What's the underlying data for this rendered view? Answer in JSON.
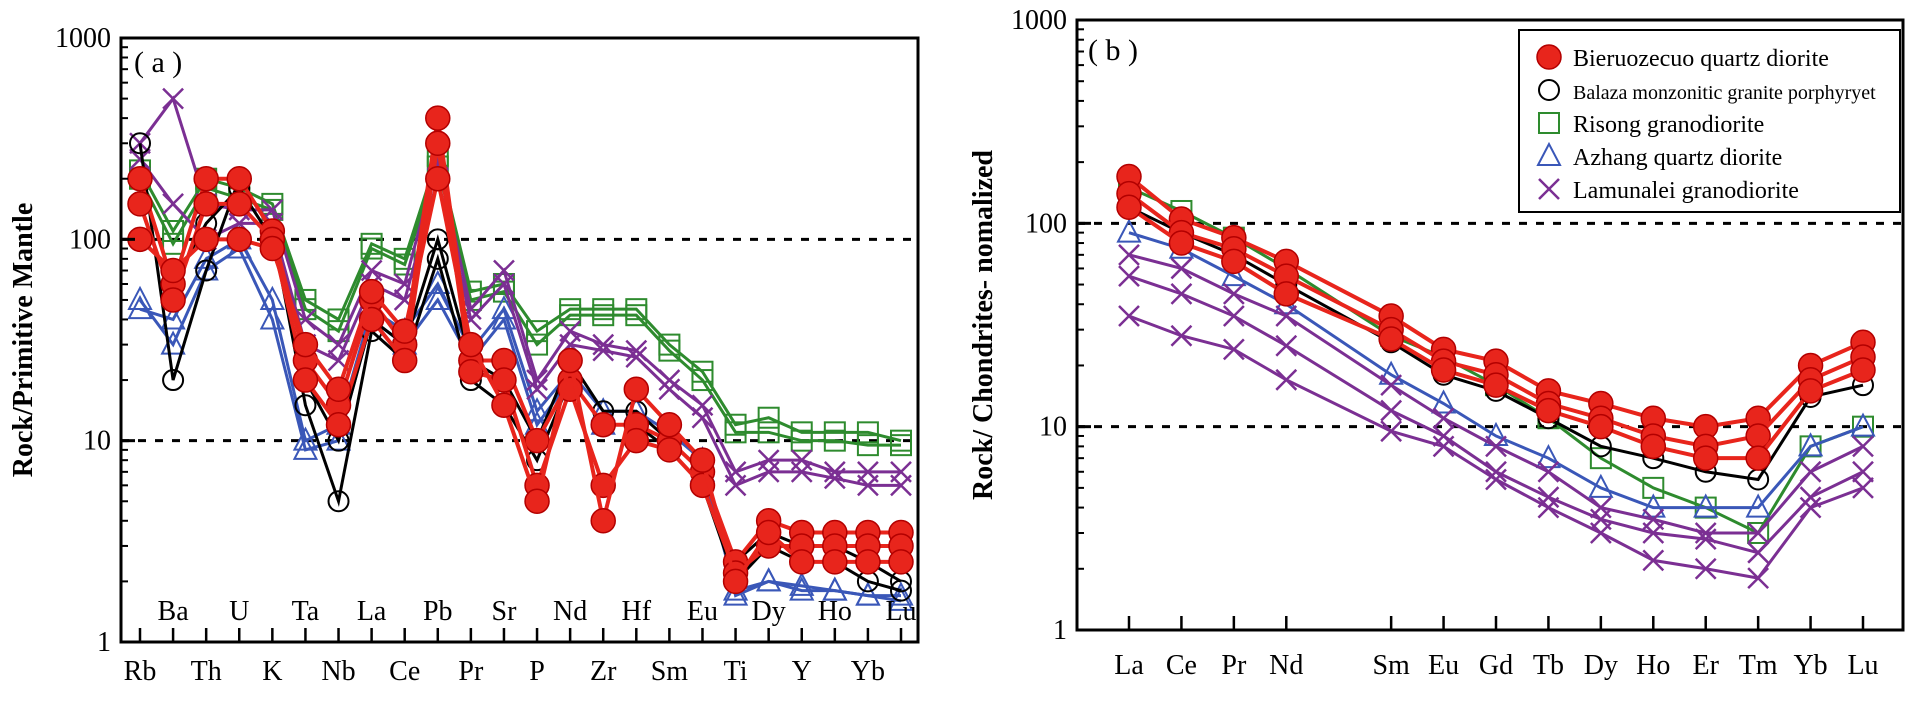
{
  "colors": {
    "bieruozecuo": "#e8251c",
    "balaza": "#000000",
    "risong": "#2e8b2e",
    "azhang": "#3a57b8",
    "lamunalei": "#7b2f93"
  },
  "chart_data": [
    {
      "type": "line",
      "panel_label": "( a )",
      "title": "",
      "ylabel": "Rock/Primitive Mantle",
      "yscale": "log",
      "ylim": [
        1,
        1000
      ],
      "yticks": [
        "1",
        "10",
        "100",
        "1000"
      ],
      "ref_lines": [
        10,
        100
      ],
      "categories": [
        "Rb",
        "Ba",
        "Th",
        "U",
        "K",
        "Ta",
        "Nb",
        "La",
        "Ce",
        "Pb",
        "Pr",
        "Sr",
        "P",
        "Nd",
        "Zr",
        "Hf",
        "Sm",
        "Eu",
        "Ti",
        "Dy",
        "Y",
        "Ho",
        "Yb",
        "Lu"
      ],
      "series": [
        {
          "name": "Risong granodiorite",
          "marker": "square",
          "color_key": "risong",
          "values": [
            220,
            110,
            200,
            180,
            150,
            50,
            40,
            95,
            80,
            260,
            55,
            60,
            35,
            45,
            45,
            45,
            30,
            22,
            12,
            13,
            11,
            11,
            11,
            10
          ]
        },
        {
          "name": "Risong granodiorite",
          "marker": "square",
          "color_key": "risong",
          "values": [
            200,
            95,
            180,
            160,
            140,
            45,
            35,
            90,
            75,
            230,
            50,
            55,
            30,
            42,
            42,
            42,
            28,
            20,
            11,
            11,
            10,
            10,
            9.5,
            9.5
          ]
        },
        {
          "name": "Azhang quartz diorite",
          "marker": "triangle",
          "color_key": "azhang",
          "values": [
            50,
            30,
            70,
            90,
            40,
            9,
            10,
            40,
            30,
            50,
            25,
            40,
            12,
            20,
            12,
            12,
            10,
            7,
            1.8,
            2,
            1.8,
            1.8,
            1.7,
            1.7
          ]
        },
        {
          "name": "Azhang quartz diorite",
          "marker": "triangle",
          "color_key": "azhang",
          "values": [
            45,
            40,
            80,
            100,
            50,
            10,
            12,
            45,
            35,
            60,
            28,
            45,
            14,
            22,
            14,
            14,
            11,
            8,
            1.7,
            2,
            1.9,
            1.8,
            1.7,
            1.6
          ]
        },
        {
          "name": "Lamunalei granodiorite",
          "marker": "x",
          "color_key": "lamunalei",
          "values": [
            300,
            500,
            150,
            140,
            140,
            40,
            30,
            70,
            60,
            250,
            45,
            70,
            20,
            35,
            30,
            28,
            20,
            15,
            7,
            8,
            8,
            7,
            7,
            7
          ]
        },
        {
          "name": "Lamunalei granodiorite",
          "marker": "x",
          "color_key": "lamunalei",
          "values": [
            250,
            150,
            100,
            120,
            120,
            30,
            25,
            60,
            50,
            200,
            40,
            60,
            18,
            30,
            28,
            26,
            18,
            13,
            6,
            7,
            7,
            6.5,
            6,
            6
          ]
        },
        {
          "name": "Balaza monzonitic granite porphyryet",
          "marker": "circle",
          "color_key": "balaza",
          "values": [
            300,
            20,
            70,
            200,
            110,
            15,
            5,
            35,
            25,
            80,
            20,
            15,
            8,
            20,
            12,
            12,
            9,
            6,
            2,
            3,
            2.5,
            2.5,
            2,
            1.8
          ]
        },
        {
          "name": "Balaza monzonitic granite porphyryet",
          "marker": "circle",
          "color_key": "balaza",
          "values": [
            200,
            60,
            120,
            180,
            100,
            20,
            10,
            40,
            30,
            100,
            25,
            20,
            10,
            25,
            14,
            14,
            10,
            7,
            2.5,
            3.5,
            3,
            3,
            2.5,
            2
          ]
        },
        {
          "name": "Bieruozecuo quartz diorite",
          "marker": "circle",
          "color_key": "bieruozecuo",
          "values": [
            200,
            60,
            200,
            200,
            110,
            25,
            15,
            50,
            30,
            400,
            25,
            25,
            10,
            20,
            12,
            12,
            10,
            7,
            2.5,
            4,
            3.5,
            3.5,
            3.5,
            3.5
          ]
        },
        {
          "name": "Bieruozecuo quartz diorite",
          "marker": "circle",
          "color_key": "bieruozecuo",
          "values": [
            150,
            50,
            150,
            150,
            100,
            20,
            12,
            40,
            25,
            300,
            22,
            20,
            6,
            18,
            6,
            10,
            9,
            6,
            2.2,
            3,
            3,
            3,
            3,
            3
          ]
        },
        {
          "name": "Bieruozecuo quartz diorite",
          "marker": "circle",
          "color_key": "bieruozecuo",
          "values": [
            100,
            70,
            100,
            100,
            90,
            30,
            18,
            55,
            35,
            200,
            30,
            15,
            5,
            25,
            4,
            18,
            12,
            8,
            2,
            3.5,
            2.5,
            2.5,
            2.5,
            2.5
          ]
        }
      ]
    },
    {
      "type": "line",
      "panel_label": "( b )",
      "title": "",
      "ylabel": "Rock/ Chondrites- nomalized",
      "yscale": "log",
      "ylim": [
        1,
        1000
      ],
      "yticks": [
        "1",
        "10",
        "100",
        "1000"
      ],
      "ref_lines": [
        10,
        100
      ],
      "categories": [
        "La",
        "Ce",
        "Pr",
        "Nd",
        "Sm",
        "Eu",
        "Gd",
        "Tb",
        "Dy",
        "Ho",
        "Er",
        "Tm",
        "Yb",
        "Lu"
      ],
      "x": [
        1,
        2,
        3,
        4,
        6,
        7,
        8,
        9,
        10,
        11,
        12,
        13,
        14,
        15
      ],
      "legend": {
        "position": "top-right",
        "entries": [
          {
            "label": "Bieruozecuo quartz diorite",
            "marker": "filled-circle",
            "color_key": "bieruozecuo"
          },
          {
            "label": "Balaza monzonitic granite porphyryet",
            "marker": "circle",
            "color_key": "balaza"
          },
          {
            "label": "Risong granodiorite",
            "marker": "square",
            "color_key": "risong"
          },
          {
            "label": "Azhang quartz diorite",
            "marker": "triangle",
            "color_key": "azhang"
          },
          {
            "label": "Lamunalei granodiorite",
            "marker": "x",
            "color_key": "lamunalei"
          }
        ]
      },
      "series": [
        {
          "name": "Risong granodiorite",
          "marker": "square",
          "color_key": "risong",
          "values": [
            150,
            115,
            85,
            60,
            28,
            22,
            16,
            11,
            7,
            5,
            4,
            3,
            8,
            10
          ]
        },
        {
          "name": "Azhang quartz diorite",
          "marker": "triangle",
          "color_key": "azhang",
          "values": [
            90,
            75,
            55,
            40,
            18,
            13,
            9,
            7,
            5,
            4,
            4,
            4,
            8,
            10
          ]
        },
        {
          "name": "Lamunalei granodiorite",
          "marker": "x",
          "color_key": "lamunalei",
          "values": [
            70,
            60,
            45,
            35,
            16,
            11,
            8,
            6,
            4,
            3.5,
            3,
            3,
            6,
            8
          ]
        },
        {
          "name": "Lamunalei granodiorite",
          "marker": "x",
          "color_key": "lamunalei",
          "values": [
            55,
            45,
            35,
            25,
            12,
            9,
            6,
            4.5,
            3.5,
            3,
            2.8,
            2.4,
            4.5,
            6
          ]
        },
        {
          "name": "Lamunalei granodiorite",
          "marker": "x",
          "color_key": "lamunalei",
          "values": [
            35,
            28,
            24,
            17,
            9.5,
            8,
            5.5,
            4,
            3,
            2.2,
            2,
            1.8,
            4,
            5
          ]
        },
        {
          "name": "Balaza monzonitic granite porphyryet",
          "marker": "circle",
          "color_key": "balaza",
          "values": [
            120,
            90,
            70,
            50,
            26,
            18,
            15,
            11,
            8,
            7,
            6,
            5.5,
            14,
            16
          ]
        },
        {
          "name": "Bieruozecuo quartz diorite",
          "marker": "circle",
          "color_key": "bieruozecuo",
          "values": [
            170,
            105,
            85,
            65,
            35,
            24,
            21,
            15,
            13,
            11,
            10,
            11,
            20,
            26
          ]
        },
        {
          "name": "Bieruozecuo quartz diorite",
          "marker": "circle",
          "color_key": "bieruozecuo",
          "values": [
            140,
            90,
            75,
            55,
            30,
            21,
            18,
            13,
            11,
            9,
            8,
            9,
            17,
            22
          ]
        },
        {
          "name": "Bieruozecuo quartz diorite",
          "marker": "circle",
          "color_key": "bieruozecuo",
          "values": [
            120,
            80,
            65,
            45,
            27,
            19,
            16,
            12,
            10,
            8,
            7,
            7,
            15,
            19
          ]
        }
      ]
    }
  ]
}
